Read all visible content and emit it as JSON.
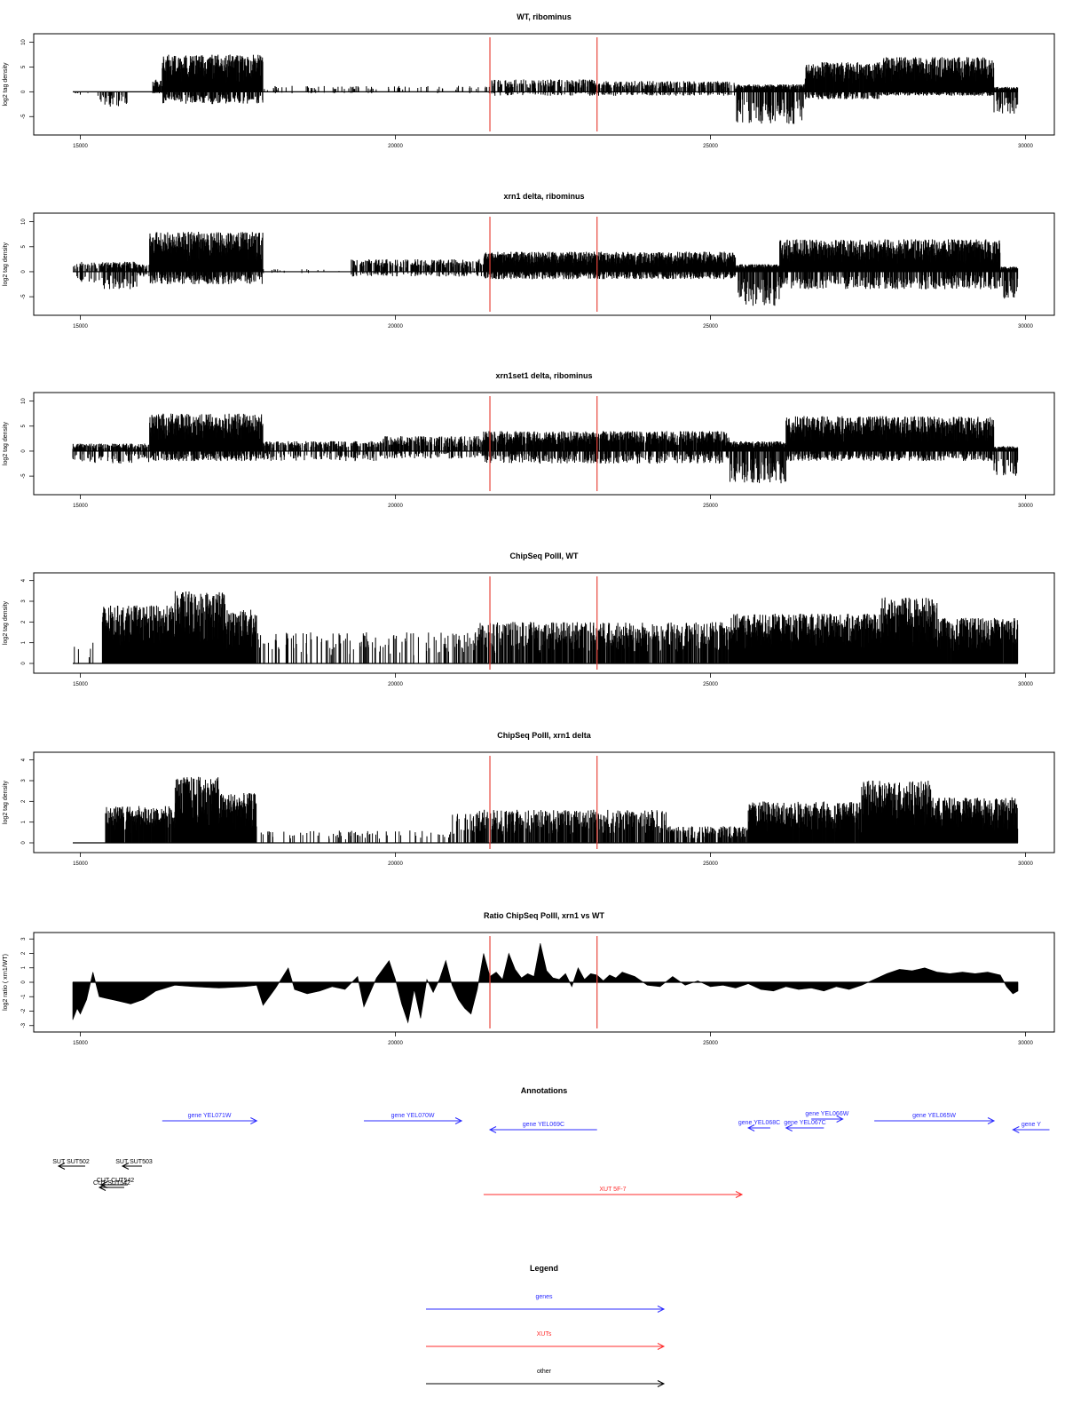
{
  "chart_data": [
    {
      "type": "bar",
      "title": "WT, ribominus",
      "xlabel": "",
      "ylabel": "log2 tag density",
      "xlim": [
        14880,
        29880
      ],
      "ylim": [
        -8,
        11
      ],
      "xticks": [
        15000,
        20000,
        25000,
        30000
      ],
      "yticks": [
        -5,
        0,
        5,
        10
      ],
      "grid": false,
      "markers_x": [
        21500,
        23200
      ],
      "marker_color": "#e8453c",
      "segments": [
        {
          "start": 14880,
          "end": 15300,
          "pos": 0.0,
          "neg": -0.8,
          "density": 0.1
        },
        {
          "start": 15300,
          "end": 15800,
          "pos": 0.0,
          "neg": -3.0,
          "density": 0.6
        },
        {
          "start": 16150,
          "end": 16300,
          "pos": 2.5,
          "neg": -0.3,
          "density": 0.9
        },
        {
          "start": 16300,
          "end": 17900,
          "pos": 7.5,
          "neg": -2.5,
          "density": 1.0
        },
        {
          "start": 17900,
          "end": 21500,
          "pos": 1.2,
          "neg": -0.3,
          "density": 0.12
        },
        {
          "start": 21500,
          "end": 23200,
          "pos": 2.5,
          "neg": -0.8,
          "density": 0.45
        },
        {
          "start": 23200,
          "end": 25400,
          "pos": 2.2,
          "neg": -0.8,
          "density": 0.45
        },
        {
          "start": 25400,
          "end": 26500,
          "pos": 1.5,
          "neg": -6.5,
          "density": 0.9
        },
        {
          "start": 26500,
          "end": 27700,
          "pos": 6.0,
          "neg": -1.5,
          "density": 0.9
        },
        {
          "start": 27700,
          "end": 29500,
          "pos": 7.0,
          "neg": -0.8,
          "density": 1.0
        },
        {
          "start": 29500,
          "end": 29880,
          "pos": 1.0,
          "neg": -4.5,
          "density": 0.9
        }
      ]
    },
    {
      "type": "bar",
      "title": "xrn1 delta, ribominus",
      "xlabel": "",
      "ylabel": "log2 tag density",
      "xlim": [
        14880,
        29880
      ],
      "ylim": [
        -8,
        11
      ],
      "xticks": [
        15000,
        20000,
        25000,
        30000
      ],
      "yticks": [
        -5,
        0,
        5,
        10
      ],
      "grid": false,
      "markers_x": [
        21500,
        23200
      ],
      "marker_color": "#e8453c",
      "segments": [
        {
          "start": 14880,
          "end": 15300,
          "pos": 2.0,
          "neg": -2.5,
          "density": 0.4
        },
        {
          "start": 15300,
          "end": 15900,
          "pos": 2.0,
          "neg": -3.5,
          "density": 0.7
        },
        {
          "start": 15900,
          "end": 16100,
          "pos": 1.5,
          "neg": -1.0,
          "density": 0.5
        },
        {
          "start": 16100,
          "end": 17900,
          "pos": 8.0,
          "neg": -2.5,
          "density": 1.0
        },
        {
          "start": 17900,
          "end": 19300,
          "pos": 0.5,
          "neg": -0.3,
          "density": 0.05
        },
        {
          "start": 19300,
          "end": 21400,
          "pos": 2.5,
          "neg": -1.0,
          "density": 0.45
        },
        {
          "start": 21400,
          "end": 25400,
          "pos": 4.0,
          "neg": -1.5,
          "density": 1.0
        },
        {
          "start": 25400,
          "end": 26100,
          "pos": 1.5,
          "neg": -7.0,
          "density": 1.0
        },
        {
          "start": 26100,
          "end": 29600,
          "pos": 6.5,
          "neg": -3.5,
          "density": 1.0
        },
        {
          "start": 29600,
          "end": 29880,
          "pos": 1.0,
          "neg": -5.5,
          "density": 1.0
        }
      ]
    },
    {
      "type": "bar",
      "title": "xrn1set1 delta, ribominus",
      "xlabel": "",
      "ylabel": "log2 tag density",
      "xlim": [
        14880,
        29880
      ],
      "ylim": [
        -8,
        11
      ],
      "xticks": [
        15000,
        20000,
        25000,
        30000
      ],
      "yticks": [
        -5,
        0,
        5,
        10
      ],
      "grid": false,
      "markers_x": [
        21500,
        23200
      ],
      "marker_color": "#e8453c",
      "segments": [
        {
          "start": 14880,
          "end": 16100,
          "pos": 1.5,
          "neg": -2.5,
          "density": 0.6
        },
        {
          "start": 16100,
          "end": 17900,
          "pos": 7.5,
          "neg": -2.0,
          "density": 1.0
        },
        {
          "start": 17900,
          "end": 19800,
          "pos": 2.0,
          "neg": -2.0,
          "density": 0.45
        },
        {
          "start": 19800,
          "end": 21400,
          "pos": 3.0,
          "neg": -1.5,
          "density": 0.55
        },
        {
          "start": 21400,
          "end": 25300,
          "pos": 4.0,
          "neg": -2.5,
          "density": 0.85
        },
        {
          "start": 25300,
          "end": 26200,
          "pos": 2.0,
          "neg": -6.5,
          "density": 1.0
        },
        {
          "start": 26200,
          "end": 29500,
          "pos": 7.0,
          "neg": -2.0,
          "density": 1.0
        },
        {
          "start": 29500,
          "end": 29880,
          "pos": 1.0,
          "neg": -5.0,
          "density": 0.9
        }
      ]
    },
    {
      "type": "bar",
      "title": "ChipSeq PolII, WT",
      "xlabel": "",
      "ylabel": "log2 tag density",
      "xlim": [
        14880,
        29880
      ],
      "ylim": [
        -0.3,
        4.2
      ],
      "xticks": [
        15000,
        20000,
        25000,
        30000
      ],
      "yticks": [
        0,
        1,
        2,
        3,
        4
      ],
      "grid": false,
      "markers_x": [
        21500,
        23200
      ],
      "marker_color": "#e8453c",
      "segments": [
        {
          "start": 14880,
          "end": 15350,
          "pos": 1.0,
          "neg": 0,
          "density": 0.05
        },
        {
          "start": 15350,
          "end": 16500,
          "pos": 2.8,
          "neg": 0,
          "density": 1.0
        },
        {
          "start": 16500,
          "end": 17300,
          "pos": 3.5,
          "neg": 0,
          "density": 1.0
        },
        {
          "start": 17300,
          "end": 17800,
          "pos": 2.6,
          "neg": 0,
          "density": 1.0
        },
        {
          "start": 17800,
          "end": 21300,
          "pos": 1.5,
          "neg": 0,
          "density": 0.15
        },
        {
          "start": 21300,
          "end": 25300,
          "pos": 2.0,
          "neg": 0,
          "density": 0.65
        },
        {
          "start": 25300,
          "end": 27700,
          "pos": 2.4,
          "neg": 0,
          "density": 1.0
        },
        {
          "start": 27700,
          "end": 28600,
          "pos": 3.2,
          "neg": 0,
          "density": 1.0
        },
        {
          "start": 28600,
          "end": 29880,
          "pos": 2.2,
          "neg": 0,
          "density": 0.9
        }
      ]
    },
    {
      "type": "bar",
      "title": "ChipSeq PolII, xrn1 delta",
      "xlabel": "",
      "ylabel": "log2 tag density",
      "xlim": [
        14880,
        29880
      ],
      "ylim": [
        -0.3,
        4.2
      ],
      "xticks": [
        15000,
        20000,
        25000,
        30000
      ],
      "yticks": [
        0,
        1,
        2,
        3,
        4
      ],
      "grid": false,
      "markers_x": [
        21500,
        23200
      ],
      "marker_color": "#e8453c",
      "segments": [
        {
          "start": 14880,
          "end": 15400,
          "pos": 0.0,
          "neg": 0,
          "density": 0.0
        },
        {
          "start": 15400,
          "end": 16500,
          "pos": 1.8,
          "neg": 0,
          "density": 0.9
        },
        {
          "start": 16500,
          "end": 17200,
          "pos": 3.2,
          "neg": 0,
          "density": 1.0
        },
        {
          "start": 17200,
          "end": 17800,
          "pos": 2.4,
          "neg": 0,
          "density": 1.0
        },
        {
          "start": 17800,
          "end": 20900,
          "pos": 0.6,
          "neg": 0,
          "density": 0.12
        },
        {
          "start": 20900,
          "end": 21300,
          "pos": 1.4,
          "neg": 0,
          "density": 0.3
        },
        {
          "start": 21300,
          "end": 24300,
          "pos": 1.6,
          "neg": 0,
          "density": 0.6
        },
        {
          "start": 24300,
          "end": 25600,
          "pos": 0.8,
          "neg": 0,
          "density": 0.5
        },
        {
          "start": 25600,
          "end": 27400,
          "pos": 2.0,
          "neg": 0,
          "density": 0.9
        },
        {
          "start": 27400,
          "end": 28500,
          "pos": 3.0,
          "neg": 0,
          "density": 1.0
        },
        {
          "start": 28500,
          "end": 29880,
          "pos": 2.2,
          "neg": 0,
          "density": 1.0
        }
      ]
    },
    {
      "type": "area",
      "title": "Ratio ChipSeq PolII, xrn1 vs WT",
      "xlabel": "",
      "ylabel": "log2 ratio ( xrn1/WT)",
      "xlim": [
        14880,
        29880
      ],
      "ylim": [
        -3.2,
        3.2
      ],
      "xticks": [
        15000,
        20000,
        25000,
        30000
      ],
      "yticks": [
        -3,
        -2,
        -1,
        0,
        1,
        2,
        3
      ],
      "grid": false,
      "markers_x": [
        21500,
        23200
      ],
      "marker_color": "#e8453c",
      "x": [
        14880,
        14950,
        15000,
        15100,
        15200,
        15300,
        15400,
        15600,
        15800,
        16000,
        16200,
        16500,
        16800,
        17200,
        17600,
        17800,
        17900,
        18100,
        18300,
        18400,
        18600,
        18800,
        19000,
        19200,
        19400,
        19500,
        19700,
        19900,
        20000,
        20100,
        20200,
        20300,
        20400,
        20500,
        20600,
        20700,
        20800,
        20900,
        21000,
        21100,
        21200,
        21300,
        21400,
        21500,
        21600,
        21700,
        21800,
        21900,
        22000,
        22100,
        22200,
        22300,
        22400,
        22500,
        22600,
        22700,
        22800,
        22900,
        23000,
        23100,
        23200,
        23300,
        23400,
        23500,
        23600,
        23800,
        24000,
        24200,
        24400,
        24600,
        24800,
        25000,
        25200,
        25400,
        25600,
        25800,
        26000,
        26200,
        26400,
        26600,
        26800,
        27000,
        27200,
        27400,
        27600,
        27800,
        28000,
        28200,
        28400,
        28600,
        28800,
        29000,
        29200,
        29400,
        29600,
        29700,
        29800,
        29880
      ],
      "y": [
        -2.6,
        -1.8,
        -2.2,
        -1.2,
        0.7,
        -1.0,
        -1.1,
        -1.3,
        -1.5,
        -1.2,
        -0.6,
        -0.2,
        -0.3,
        -0.4,
        -0.3,
        -0.2,
        -1.6,
        -0.4,
        1.0,
        -0.5,
        -0.8,
        -0.6,
        -0.3,
        -0.5,
        0.4,
        -1.7,
        0.3,
        1.5,
        0.2,
        -1.5,
        -2.8,
        -0.5,
        -2.5,
        0.2,
        -0.7,
        0.2,
        1.5,
        -0.2,
        -1.2,
        -1.8,
        -2.2,
        -0.5,
        2.0,
        0.4,
        0.7,
        0.2,
        2.0,
        0.9,
        0.3,
        0.6,
        0.4,
        2.7,
        0.8,
        0.3,
        0.2,
        0.6,
        -0.3,
        1.0,
        0.2,
        0.6,
        0.5,
        0.1,
        0.5,
        0.3,
        0.7,
        0.4,
        -0.2,
        -0.3,
        0.4,
        -0.2,
        0.1,
        -0.3,
        -0.2,
        -0.4,
        -0.1,
        -0.5,
        -0.6,
        -0.3,
        -0.5,
        -0.4,
        -0.6,
        -0.3,
        -0.5,
        -0.2,
        0.2,
        0.6,
        0.9,
        0.8,
        1.0,
        0.7,
        0.6,
        0.7,
        0.6,
        0.7,
        0.5,
        -0.3,
        -0.8,
        -0.6
      ]
    }
  ],
  "annotations": {
    "title": "Annotations",
    "genes": [
      {
        "label": "gene YEL071W",
        "start": 16300,
        "end": 17800,
        "strand": "+"
      },
      {
        "label": "gene YEL070W",
        "start": 19500,
        "end": 21050,
        "strand": "+"
      },
      {
        "label": "gene YEL069C",
        "start": 21500,
        "end": 23200,
        "strand": "-"
      },
      {
        "label": "gene YEL068C",
        "start": 25600,
        "end": 25950,
        "strand": "-"
      },
      {
        "label": "gene YEL067C",
        "start": 26200,
        "end": 26800,
        "strand": "-"
      },
      {
        "label": "gene YEL066W",
        "start": 26600,
        "end": 27100,
        "strand": "+"
      },
      {
        "label": "gene YEL065W",
        "start": 27600,
        "end": 29500,
        "strand": "+"
      },
      {
        "label": "gene Y",
        "start": 29800,
        "end": 30380,
        "strand": "-"
      }
    ],
    "xuts": [
      {
        "label": "XUT 5F-7",
        "start": 21400,
        "end": 25500,
        "strand": "+"
      }
    ],
    "others": [
      {
        "label": "SUT SUT502",
        "start": 15200,
        "end": 15550,
        "strand": "-"
      },
      {
        "label": "SUT SUT503",
        "start": 15600,
        "end": 15800,
        "strand": "-"
      },
      {
        "label": "CUT CUT542",
        "start": 15350,
        "end": 15750,
        "strand": "-"
      },
      {
        "label": "CUT SUT542",
        "start": 15300,
        "end": 15650,
        "strand": "-"
      }
    ]
  },
  "legend": {
    "title": "Legend",
    "items": [
      {
        "label": "genes",
        "color": "#2b2bff"
      },
      {
        "label": "XUTs",
        "color": "#ff2b2b"
      },
      {
        "label": "other",
        "color": "#000000"
      }
    ]
  }
}
